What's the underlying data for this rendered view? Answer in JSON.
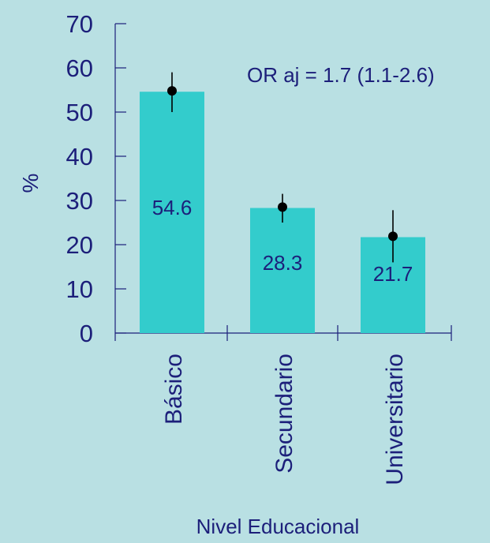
{
  "chart_data": {
    "type": "bar",
    "categories": [
      "Básico",
      "Secundario",
      "Universitario"
    ],
    "values": [
      54.6,
      28.3,
      21.7
    ],
    "value_labels": [
      "54.6",
      "28.3",
      "21.7"
    ],
    "points": [
      54.8,
      28.5,
      21.9
    ],
    "error_bars": [
      {
        "low": 50.0,
        "high": 59.0
      },
      {
        "low": 25.0,
        "high": 31.5
      },
      {
        "low": 16.0,
        "high": 27.8
      }
    ],
    "ylabel": "%",
    "xlabel": "Nivel Educacional",
    "ylim": [
      0,
      70
    ],
    "yticks": [
      0,
      10,
      20,
      30,
      40,
      50,
      60,
      70
    ],
    "annotation": "OR aj = 1.7 (1.1-2.6)",
    "grid": false,
    "colors": {
      "background": "#b9e0e3",
      "bar": "#33cccc",
      "text": "#1c1f7a",
      "axis": "#1c1f7a",
      "marker": "#000000"
    }
  }
}
